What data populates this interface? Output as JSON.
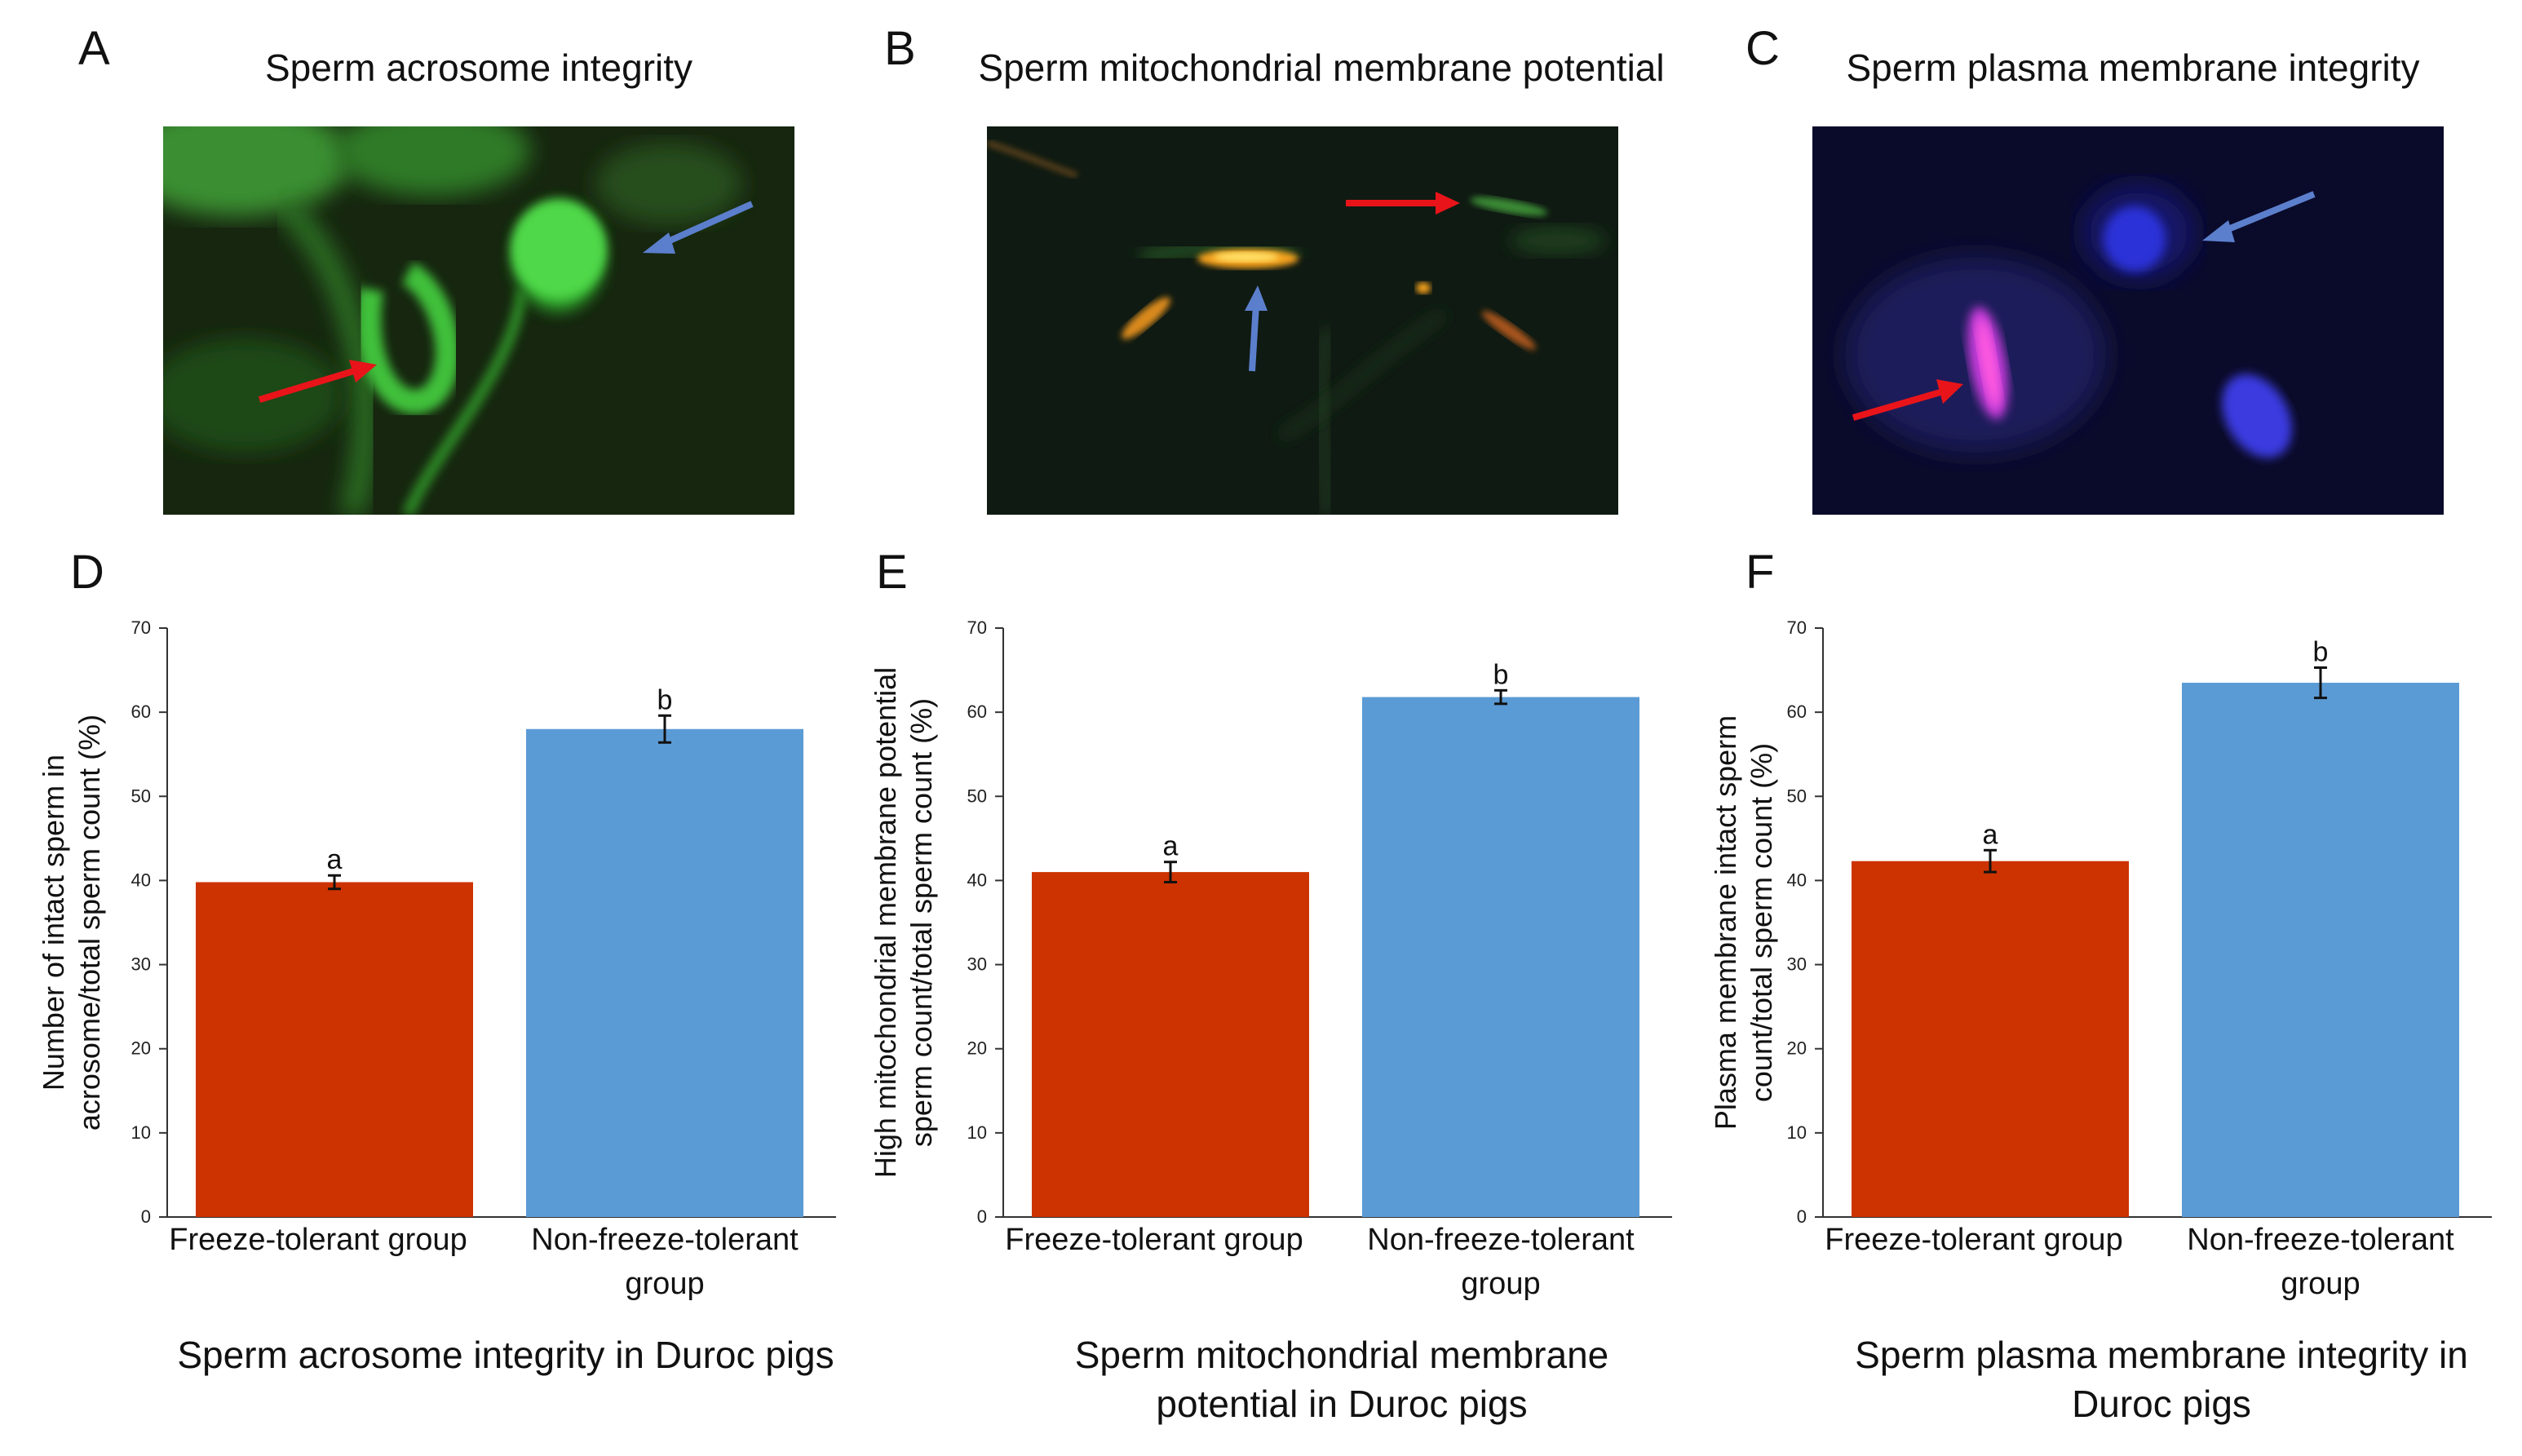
{
  "panels": {
    "A": {
      "letter": "A",
      "title": "Sperm acrosome integrity"
    },
    "B": {
      "letter": "B",
      "title": "Sperm mitochondrial membrane potential"
    },
    "C": {
      "letter": "C",
      "title": "Sperm plasma membrane integrity"
    },
    "D": {
      "letter": "D"
    },
    "E": {
      "letter": "E"
    },
    "F": {
      "letter": "F"
    }
  },
  "colors": {
    "freeze_tolerant": "#cc3300",
    "non_freeze_tolerant": "#5b9bd5",
    "arrow_red": "#e8141a",
    "arrow_blue": "#5b7fcc"
  },
  "chart_data": [
    {
      "type": "bar",
      "panel": "D",
      "categories": [
        "Freeze-tolerant group",
        "Non-freeze-tolerant group"
      ],
      "values": [
        39.8,
        58.0
      ],
      "errors": [
        0.8,
        1.6
      ],
      "significance": [
        "a",
        "b"
      ],
      "ylabel": "Number of intact sperm in acrosome/total sperm count (%)",
      "ylabel_lines": [
        "Number of intact sperm in",
        "acrosome/total sperm count (%)"
      ],
      "xlabel_lines": [
        "Sperm acrosome integrity in Duroc pigs"
      ],
      "ylim": [
        0,
        70
      ],
      "yticks": [
        0,
        10,
        20,
        30,
        40,
        50,
        60,
        70
      ],
      "category_lines": [
        [
          "Freeze-tolerant group"
        ],
        [
          "Non-freeze-tolerant",
          "group"
        ]
      ]
    },
    {
      "type": "bar",
      "panel": "E",
      "categories": [
        "Freeze-tolerant group",
        "Non-freeze-tolerant group"
      ],
      "values": [
        41.0,
        61.8
      ],
      "errors": [
        1.2,
        0.8
      ],
      "significance": [
        "a",
        "b"
      ],
      "ylabel": "High mitochondrial membrane potential sperm count/total sperm count (%)",
      "ylabel_lines": [
        "High mitochondrial membrane potential",
        "sperm count/total sperm count (%)"
      ],
      "xlabel_lines": [
        "Sperm mitochondrial membrane",
        "potential in Duroc pigs"
      ],
      "ylim": [
        0,
        70
      ],
      "yticks": [
        0,
        10,
        20,
        30,
        40,
        50,
        60,
        70
      ],
      "category_lines": [
        [
          "Freeze-tolerant group"
        ],
        [
          "Non-freeze-tolerant",
          "group"
        ]
      ]
    },
    {
      "type": "bar",
      "panel": "F",
      "categories": [
        "Freeze-tolerant group",
        "Non-freeze-tolerant group"
      ],
      "values": [
        42.3,
        63.5
      ],
      "errors": [
        1.3,
        1.8
      ],
      "significance": [
        "a",
        "b"
      ],
      "ylabel": "Plasma membrane intact sperm count/total sperm count (%)",
      "ylabel_lines": [
        "Plasma membrane intact sperm",
        "count/total sperm count (%)"
      ],
      "xlabel_lines": [
        "Sperm plasma membrane integrity in",
        "Duroc pigs"
      ],
      "ylim": [
        0,
        70
      ],
      "yticks": [
        0,
        10,
        20,
        30,
        40,
        50,
        60,
        70
      ],
      "category_lines": [
        [
          "Freeze-tolerant group"
        ],
        [
          "Non-freeze-tolerant",
          "group"
        ]
      ]
    }
  ]
}
